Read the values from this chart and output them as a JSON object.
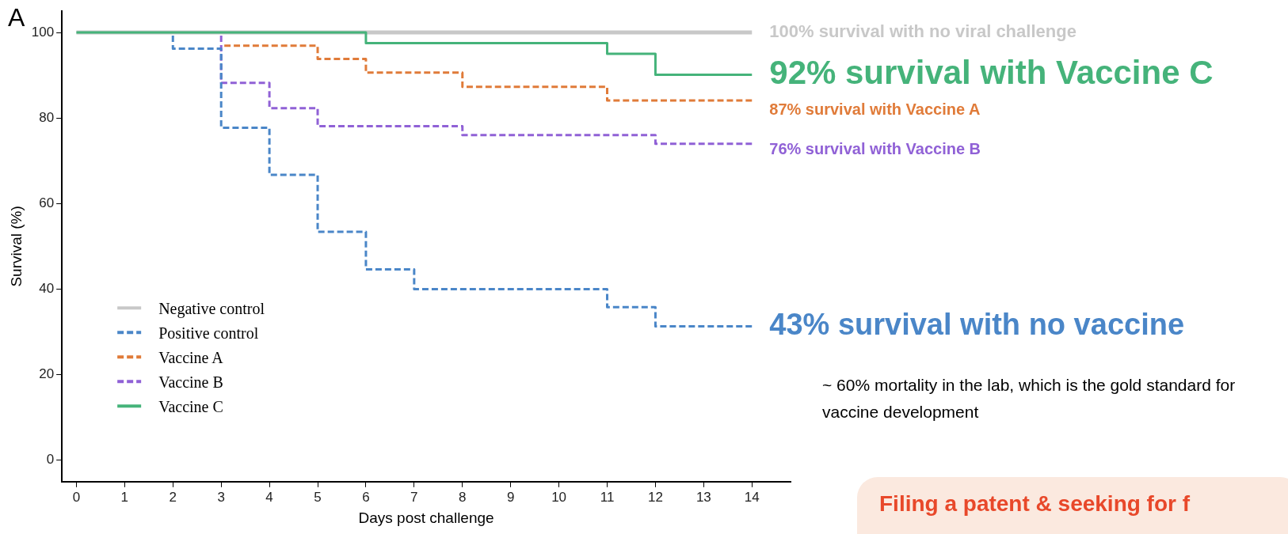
{
  "chart_data": {
    "type": "step",
    "title": "A",
    "xlabel": "Days post challenge",
    "ylabel": "Survival (%)",
    "xlim": [
      -0.3,
      14.8
    ],
    "ylim": [
      -5,
      105
    ],
    "xticks": [
      0,
      1,
      2,
      3,
      4,
      5,
      6,
      7,
      8,
      9,
      10,
      11,
      12,
      13,
      14
    ],
    "yticks": [
      0,
      20,
      40,
      60,
      80,
      100
    ],
    "grid": false,
    "legend": "bottom left",
    "marker": "none",
    "series": [
      {
        "name": "Negative control",
        "color": "#c8c8c8",
        "line_style": "solid",
        "x": [
          0,
          14
        ],
        "values": [
          100,
          100
        ]
      },
      {
        "name": "Positive control",
        "color": "#4a86c8",
        "line_style": "dashed",
        "x": [
          2,
          2,
          3,
          4,
          5,
          6,
          7,
          11,
          12,
          14
        ],
        "values": [
          100,
          96.2,
          77.7,
          66.7,
          53.4,
          44.6,
          40,
          35.8,
          31.3,
          31.3
        ]
      },
      {
        "name": "Vaccine A",
        "color": "#e07b39",
        "line_style": "dashed",
        "x": [
          3,
          5,
          6,
          8,
          11,
          14
        ],
        "values": [
          96.9,
          93.8,
          90.6,
          87.3,
          84.1,
          84.1
        ]
      },
      {
        "name": "Vaccine B",
        "color": "#9061d6",
        "line_style": "dashed",
        "x": [
          3,
          3,
          4,
          5,
          8,
          12,
          14
        ],
        "values": [
          100,
          88.2,
          82.3,
          78.1,
          76,
          74,
          74
        ]
      },
      {
        "name": "Vaccine C",
        "color": "#45b37a",
        "line_style": "solid",
        "x": [
          0,
          6,
          11,
          12,
          14
        ],
        "values": [
          100,
          97.5,
          95,
          90.1,
          90.1
        ]
      }
    ],
    "annotations": [
      "100% survival with no viral challenge",
      "92% survival with Vaccine C",
      "87% survival with Vaccine A",
      "76% survival with Vaccine B",
      "43% survival with no vaccine",
      "~ 60% mortality in the lab, which is the gold standard for vaccine development",
      "Filing a patent & seeking for f"
    ]
  }
}
